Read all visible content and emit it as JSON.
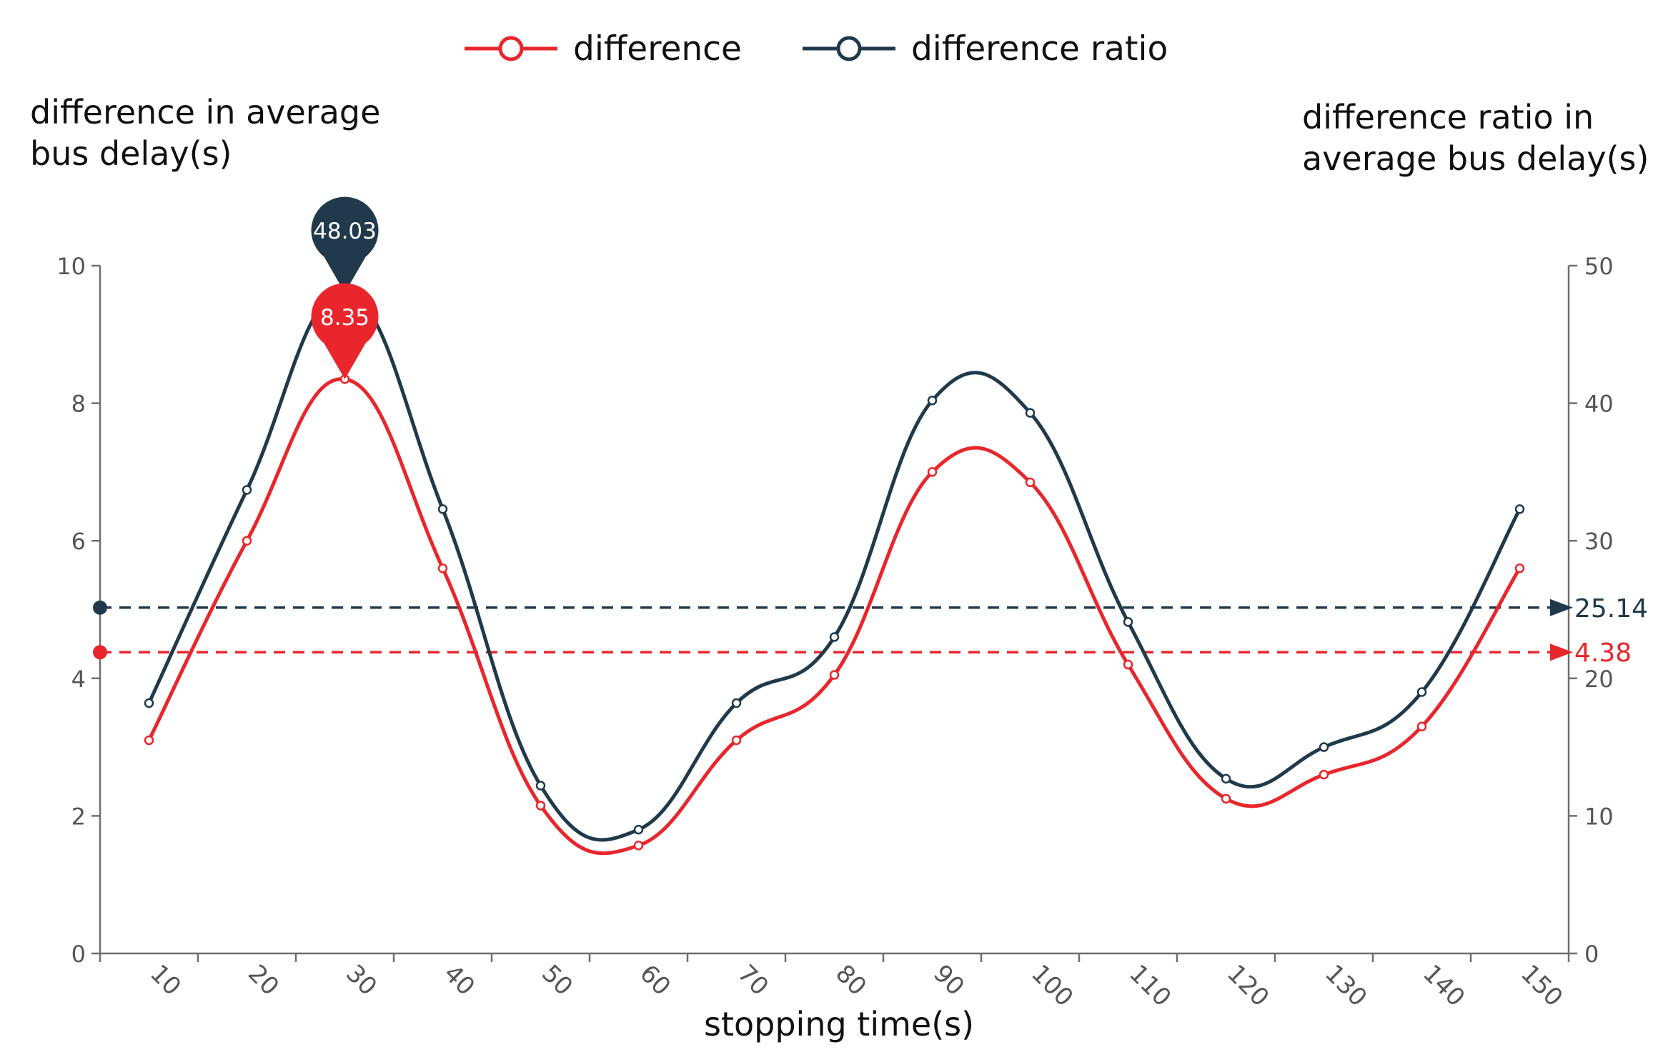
{
  "chart_data": {
    "type": "line",
    "x": [
      10,
      20,
      30,
      40,
      50,
      60,
      70,
      80,
      90,
      100,
      110,
      120,
      130,
      140,
      150
    ],
    "xlabel": "stopping time(s)",
    "ylabel_left": "difference in average bus delay(s)",
    "ylabel_right": "difference ratio in average bus delay(s)",
    "ylim_left": [
      0,
      10
    ],
    "ylim_right": [
      0,
      50
    ],
    "yticks_left": [
      "0",
      "2",
      "4",
      "6",
      "8",
      "10"
    ],
    "yticks_right": [
      "0",
      "10",
      "20",
      "30",
      "40",
      "50"
    ],
    "grid": false,
    "legend_position": "top",
    "series": [
      {
        "name": "difference",
        "axis": "left",
        "color": "#e8262c",
        "values": [
          3.1,
          6.0,
          8.35,
          5.6,
          2.15,
          1.57,
          3.1,
          4.05,
          7.0,
          6.85,
          4.2,
          2.25,
          2.6,
          3.3,
          5.6
        ],
        "max_marker": {
          "x": 30,
          "label": "8.35"
        },
        "average": {
          "value": 4.38,
          "label": "4.38"
        }
      },
      {
        "name": "difference ratio",
        "axis": "right",
        "color": "#203a4c",
        "values": [
          18.2,
          33.7,
          48.03,
          32.3,
          12.2,
          9.0,
          18.2,
          23.0,
          40.2,
          39.3,
          24.1,
          12.7,
          15.0,
          19.0,
          32.3
        ],
        "max_marker": {
          "x": 30,
          "label": "48.03"
        },
        "average": {
          "value": 25.14,
          "label": "25.14"
        }
      }
    ]
  }
}
